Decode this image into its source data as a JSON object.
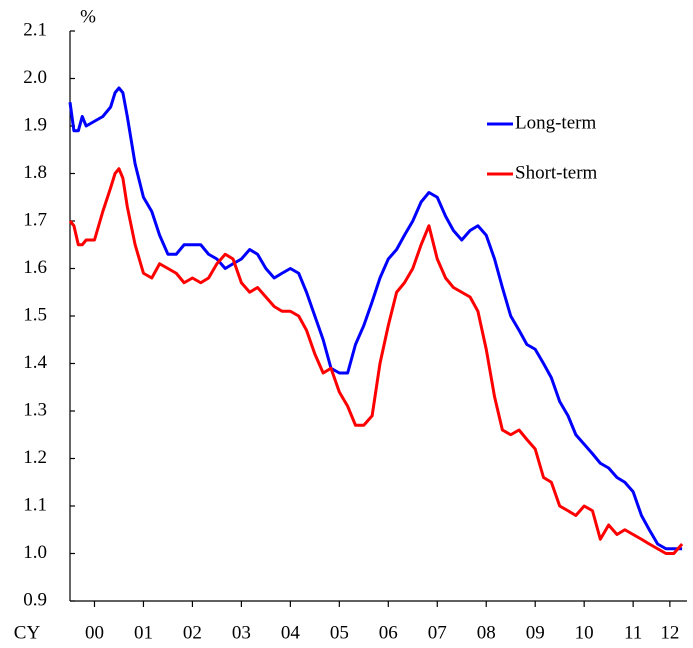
{
  "chart_data": {
    "type": "line",
    "y_label": "%",
    "x_label": "CY",
    "x": [
      0,
      0.08,
      0.17,
      0.25,
      0.33,
      0.5,
      0.67,
      0.83,
      0.92,
      1,
      1.08,
      1.17,
      1.33,
      1.5,
      1.67,
      1.83,
      2,
      2.17,
      2.33,
      2.5,
      2.67,
      2.83,
      3,
      3.17,
      3.33,
      3.5,
      3.67,
      3.83,
      4,
      4.17,
      4.33,
      4.5,
      4.67,
      4.83,
      5,
      5.17,
      5.33,
      5.5,
      5.67,
      5.83,
      6,
      6.17,
      6.33,
      6.5,
      6.67,
      6.83,
      7,
      7.17,
      7.33,
      7.5,
      7.67,
      7.83,
      8,
      8.17,
      8.33,
      8.5,
      8.67,
      8.83,
      9,
      9.17,
      9.33,
      9.5,
      9.67,
      9.83,
      10,
      10.17,
      10.33,
      10.5,
      10.67,
      10.83,
      11,
      11.17,
      11.33,
      11.5,
      11.67,
      11.83,
      12,
      12.17,
      12.33,
      12.5
    ],
    "series": [
      {
        "name": "Long-term",
        "color": "#0000ff",
        "values": [
          1.95,
          1.89,
          1.89,
          1.92,
          1.9,
          1.91,
          1.92,
          1.94,
          1.97,
          1.98,
          1.97,
          1.92,
          1.82,
          1.75,
          1.72,
          1.67,
          1.63,
          1.63,
          1.65,
          1.65,
          1.65,
          1.63,
          1.62,
          1.6,
          1.61,
          1.62,
          1.64,
          1.63,
          1.6,
          1.58,
          1.59,
          1.6,
          1.59,
          1.55,
          1.5,
          1.45,
          1.39,
          1.38,
          1.38,
          1.44,
          1.48,
          1.53,
          1.58,
          1.62,
          1.64,
          1.67,
          1.7,
          1.74,
          1.76,
          1.75,
          1.71,
          1.68,
          1.66,
          1.68,
          1.69,
          1.67,
          1.62,
          1.56,
          1.5,
          1.47,
          1.44,
          1.43,
          1.4,
          1.37,
          1.32,
          1.29,
          1.25,
          1.23,
          1.21,
          1.19,
          1.18,
          1.16,
          1.15,
          1.13,
          1.08,
          1.05,
          1.02,
          1.01,
          1.01,
          1.01
        ]
      },
      {
        "name": "Short-term",
        "color": "#ff0000",
        "values": [
          1.7,
          1.69,
          1.65,
          1.65,
          1.66,
          1.66,
          1.72,
          1.77,
          1.8,
          1.81,
          1.79,
          1.73,
          1.65,
          1.59,
          1.58,
          1.61,
          1.6,
          1.59,
          1.57,
          1.58,
          1.57,
          1.58,
          1.61,
          1.63,
          1.62,
          1.57,
          1.55,
          1.56,
          1.54,
          1.52,
          1.51,
          1.51,
          1.5,
          1.47,
          1.42,
          1.38,
          1.39,
          1.34,
          1.31,
          1.27,
          1.27,
          1.29,
          1.4,
          1.48,
          1.55,
          1.57,
          1.6,
          1.65,
          1.69,
          1.62,
          1.58,
          1.56,
          1.55,
          1.54,
          1.51,
          1.43,
          1.33,
          1.26,
          1.25,
          1.26,
          1.24,
          1.22,
          1.16,
          1.15,
          1.1,
          1.09,
          1.08,
          1.1,
          1.09,
          1.03,
          1.06,
          1.04,
          1.05,
          1.04,
          1.03,
          1.02,
          1.01,
          1.0,
          1.0,
          1.02
        ]
      }
    ],
    "xlim": [
      0,
      12.6
    ],
    "xticks": [
      {
        "value": 0.5,
        "label": "00"
      },
      {
        "value": 1.5,
        "label": "01"
      },
      {
        "value": 2.5,
        "label": "02"
      },
      {
        "value": 3.5,
        "label": "03"
      },
      {
        "value": 4.5,
        "label": "04"
      },
      {
        "value": 5.5,
        "label": "05"
      },
      {
        "value": 6.5,
        "label": "06"
      },
      {
        "value": 7.5,
        "label": "07"
      },
      {
        "value": 8.5,
        "label": "08"
      },
      {
        "value": 9.5,
        "label": "09"
      },
      {
        "value": 10.5,
        "label": "10"
      },
      {
        "value": 11.5,
        "label": "11"
      },
      {
        "value": 12.25,
        "label": "12"
      }
    ],
    "ylim": [
      0.9,
      2.1
    ],
    "yticks": [
      {
        "value": 0.9,
        "label": "0.9"
      },
      {
        "value": 1.0,
        "label": "1.0"
      },
      {
        "value": 1.1,
        "label": "1.1"
      },
      {
        "value": 1.2,
        "label": "1.2"
      },
      {
        "value": 1.3,
        "label": "1.3"
      },
      {
        "value": 1.4,
        "label": "1.4"
      },
      {
        "value": 1.5,
        "label": "1.5"
      },
      {
        "value": 1.6,
        "label": "1.6"
      },
      {
        "value": 1.7,
        "label": "1.7"
      },
      {
        "value": 1.8,
        "label": "1.8"
      },
      {
        "value": 1.9,
        "label": "1.9"
      },
      {
        "value": 2.0,
        "label": "2.0"
      },
      {
        "value": 2.1,
        "label": "2.1"
      }
    ],
    "grid": false,
    "legend": "upper right"
  }
}
